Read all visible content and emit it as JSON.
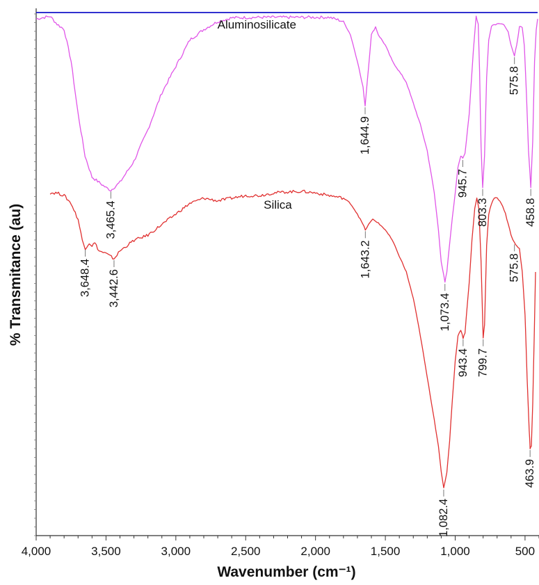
{
  "chart_data": {
    "type": "line",
    "xlabel": "Wavenumber (cm⁻¹)",
    "ylabel": "% Transmitance (au)",
    "x_reversed": true,
    "xlim": [
      4000,
      400
    ],
    "x_ticks": [
      4000,
      3500,
      3000,
      2500,
      2000,
      1500,
      1000,
      500
    ],
    "x_tick_labels": [
      "4,000",
      "3,500",
      "3,000",
      "2,500",
      "2,000",
      "1,500",
      "1,000",
      "500"
    ],
    "ylim": [
      0,
      100
    ],
    "y_tick_labels": false,
    "grid": false,
    "legend": "none",
    "series": [
      {
        "name": "Aluminosilicate",
        "color": "#e055e8",
        "points": [
          [
            4000,
            98
          ],
          [
            3900,
            98.5
          ],
          [
            3850,
            97
          ],
          [
            3800,
            96
          ],
          [
            3750,
            90
          ],
          [
            3700,
            80
          ],
          [
            3650,
            72
          ],
          [
            3600,
            68
          ],
          [
            3550,
            67
          ],
          [
            3500,
            66
          ],
          [
            3465.4,
            65.5
          ],
          [
            3400,
            67
          ],
          [
            3300,
            71
          ],
          [
            3200,
            77
          ],
          [
            3100,
            84
          ],
          [
            3000,
            89
          ],
          [
            2900,
            94
          ],
          [
            2800,
            96
          ],
          [
            2700,
            97.5
          ],
          [
            2600,
            98.2
          ],
          [
            2400,
            98.3
          ],
          [
            2200,
            98.3
          ],
          [
            2000,
            98.3
          ],
          [
            1900,
            98.3
          ],
          [
            1800,
            97.5
          ],
          [
            1750,
            95
          ],
          [
            1700,
            90
          ],
          [
            1660,
            85
          ],
          [
            1644.9,
            81.5
          ],
          [
            1620,
            89
          ],
          [
            1600,
            95
          ],
          [
            1570,
            96.5
          ],
          [
            1550,
            95
          ],
          [
            1500,
            93
          ],
          [
            1450,
            90
          ],
          [
            1400,
            88
          ],
          [
            1350,
            86
          ],
          [
            1300,
            82
          ],
          [
            1250,
            78
          ],
          [
            1200,
            73
          ],
          [
            1150,
            65
          ],
          [
            1120,
            58
          ],
          [
            1100,
            52
          ],
          [
            1073.4,
            48
          ],
          [
            1060,
            50
          ],
          [
            1030,
            58
          ],
          [
            1000,
            65
          ],
          [
            980,
            70
          ],
          [
            960,
            72
          ],
          [
            945.7,
            71.5
          ],
          [
            930,
            72.5
          ],
          [
            900,
            80
          ],
          [
            870,
            92
          ],
          [
            850,
            98.5
          ],
          [
            835,
            97
          ],
          [
            825,
            88
          ],
          [
            815,
            74
          ],
          [
            803.3,
            66
          ],
          [
            790,
            72
          ],
          [
            775,
            87
          ],
          [
            760,
            94
          ],
          [
            740,
            96.5
          ],
          [
            720,
            97
          ],
          [
            700,
            97
          ],
          [
            680,
            97
          ],
          [
            660,
            97
          ],
          [
            640,
            96.5
          ],
          [
            620,
            95.5
          ],
          [
            600,
            93
          ],
          [
            575.8,
            91
          ],
          [
            560,
            93
          ],
          [
            540,
            96.5
          ],
          [
            520,
            96.5
          ],
          [
            505,
            93
          ],
          [
            490,
            84
          ],
          [
            475,
            73
          ],
          [
            458.8,
            66
          ],
          [
            445,
            75
          ],
          [
            432,
            90
          ],
          [
            420,
            96
          ],
          [
            410,
            98
          ]
        ]
      },
      {
        "name": "Silica",
        "color": "#e03030",
        "points": [
          [
            3900,
            65
          ],
          [
            3850,
            65
          ],
          [
            3800,
            64.5
          ],
          [
            3750,
            63
          ],
          [
            3700,
            60
          ],
          [
            3670,
            56
          ],
          [
            3648.4,
            54.5
          ],
          [
            3620,
            55.5
          ],
          [
            3600,
            55
          ],
          [
            3580,
            55.5
          ],
          [
            3550,
            54
          ],
          [
            3500,
            53.5
          ],
          [
            3442.6,
            52.5
          ],
          [
            3400,
            54
          ],
          [
            3350,
            55
          ],
          [
            3300,
            56
          ],
          [
            3200,
            57
          ],
          [
            3100,
            59
          ],
          [
            3000,
            61
          ],
          [
            2900,
            63
          ],
          [
            2800,
            64
          ],
          [
            2700,
            63.5
          ],
          [
            2600,
            64
          ],
          [
            2500,
            64.5
          ],
          [
            2400,
            64.5
          ],
          [
            2300,
            65
          ],
          [
            2200,
            65.2
          ],
          [
            2100,
            65.3
          ],
          [
            2000,
            65
          ],
          [
            1900,
            64.5
          ],
          [
            1800,
            64
          ],
          [
            1750,
            63
          ],
          [
            1700,
            61
          ],
          [
            1660,
            59
          ],
          [
            1643.2,
            58
          ],
          [
            1620,
            59
          ],
          [
            1590,
            60
          ],
          [
            1560,
            59.5
          ],
          [
            1500,
            58
          ],
          [
            1450,
            56
          ],
          [
            1400,
            53
          ],
          [
            1350,
            50
          ],
          [
            1300,
            45
          ],
          [
            1250,
            38
          ],
          [
            1200,
            30
          ],
          [
            1150,
            22
          ],
          [
            1120,
            17
          ],
          [
            1100,
            12
          ],
          [
            1082.4,
            9
          ],
          [
            1060,
            12
          ],
          [
            1040,
            18
          ],
          [
            1020,
            26
          ],
          [
            1000,
            33
          ],
          [
            980,
            38
          ],
          [
            960,
            39
          ],
          [
            943.4,
            37.5
          ],
          [
            930,
            38.5
          ],
          [
            900,
            48
          ],
          [
            880,
            56
          ],
          [
            860,
            62
          ],
          [
            845,
            64
          ],
          [
            830,
            62
          ],
          [
            815,
            52
          ],
          [
            799.7,
            37.5
          ],
          [
            790,
            40
          ],
          [
            775,
            55
          ],
          [
            760,
            61
          ],
          [
            740,
            63
          ],
          [
            720,
            64
          ],
          [
            700,
            64
          ],
          [
            680,
            63.5
          ],
          [
            660,
            62.5
          ],
          [
            640,
            61
          ],
          [
            620,
            59
          ],
          [
            600,
            57
          ],
          [
            575.8,
            55.5
          ],
          [
            560,
            55
          ],
          [
            540,
            54.5
          ],
          [
            520,
            50
          ],
          [
            500,
            42
          ],
          [
            485,
            30
          ],
          [
            470,
            20
          ],
          [
            463.9,
            16.5
          ],
          [
            455,
            17
          ],
          [
            445,
            25
          ],
          [
            435,
            37
          ],
          [
            425,
            50
          ]
        ]
      }
    ],
    "reference_line": {
      "color": "#2222cc",
      "y": 99.2
    },
    "annotations": [
      {
        "text": "Aluminosilicate",
        "x": 2420,
        "y": 96.2,
        "kind": "series-name"
      },
      {
        "text": "Silica",
        "x": 2270,
        "y": 62.0,
        "kind": "series-name"
      },
      {
        "text": "3,465.4",
        "x": 3465.4,
        "y": 65.5,
        "kind": "peak",
        "series": 0,
        "offset": 1
      },
      {
        "text": "1,644.9",
        "x": 1644.9,
        "y": 81.5,
        "kind": "peak",
        "series": 0,
        "offset": 1
      },
      {
        "text": "1,073.4",
        "x": 1073.4,
        "y": 48,
        "kind": "peak",
        "series": 0,
        "offset": 1
      },
      {
        "text": "945.7",
        "x": 945.7,
        "y": 71.5,
        "kind": "peak",
        "series": 0,
        "offset": 1
      },
      {
        "text": "803.3",
        "x": 803.3,
        "y": 66,
        "kind": "peak",
        "series": 0,
        "offset": 1
      },
      {
        "text": "575.8",
        "x": 575.8,
        "y": 91,
        "kind": "peak",
        "series": 0,
        "offset": 1
      },
      {
        "text": "458.8",
        "x": 458.8,
        "y": 66,
        "kind": "peak",
        "series": 0,
        "offset": 1
      },
      {
        "text": "3,648.4",
        "x": 3648.4,
        "y": 54.5,
        "kind": "peak",
        "series": 1,
        "offset": 1
      },
      {
        "text": "3,442.6",
        "x": 3442.6,
        "y": 52.5,
        "kind": "peak",
        "series": 1,
        "offset": 1
      },
      {
        "text": "1,643.2",
        "x": 1643.2,
        "y": 58,
        "kind": "peak",
        "series": 1,
        "offset": 1
      },
      {
        "text": "1,082.4",
        "x": 1082.4,
        "y": 9,
        "kind": "peak",
        "series": 1,
        "offset": 1
      },
      {
        "text": "943.4",
        "x": 943.4,
        "y": 37.5,
        "kind": "peak",
        "series": 1,
        "offset": 1
      },
      {
        "text": "799.7",
        "x": 799.7,
        "y": 37.5,
        "kind": "peak",
        "series": 1,
        "offset": 1
      },
      {
        "text": "575.8",
        "x": 575.8,
        "y": 55.5,
        "kind": "peak",
        "series": 1,
        "offset": 1
      },
      {
        "text": "463.9",
        "x": 463.9,
        "y": 16.5,
        "kind": "peak",
        "series": 1,
        "offset": 1
      }
    ]
  }
}
